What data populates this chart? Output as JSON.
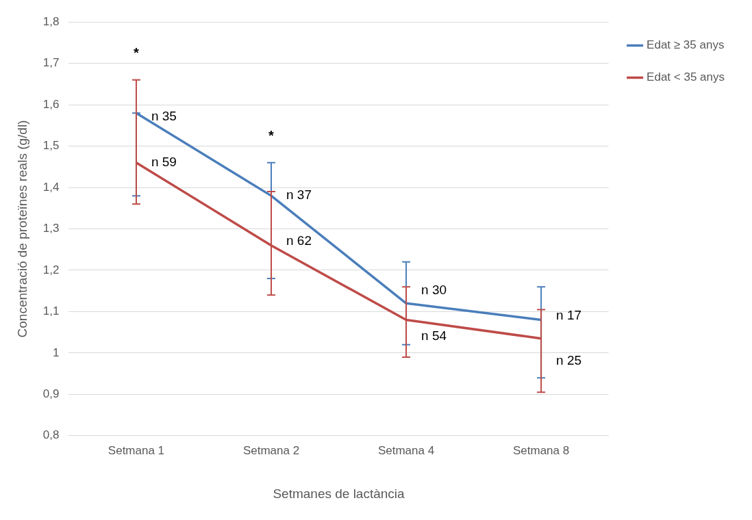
{
  "chart_data": {
    "type": "line",
    "xlabel": "Setmanes de lactància",
    "ylabel": "Concentració de proteïnes reals (g/dl)",
    "categories": [
      "Setmana 1",
      "Setmana 2",
      "Setmana 4",
      "Setmana 8"
    ],
    "series": [
      {
        "name": "Edat ≥ 35 anys",
        "color": "#4a7ebb",
        "values": [
          1.58,
          1.38,
          1.12,
          1.08
        ],
        "errors": [
          [
            1.38,
            1.58
          ],
          [
            1.18,
            1.46
          ],
          [
            1.02,
            1.22
          ],
          [
            0.94,
            1.16
          ]
        ]
      },
      {
        "name": "Edat < 35 anys",
        "color": "#be4b48",
        "values": [
          1.46,
          1.26,
          1.08,
          1.035
        ],
        "errors": [
          [
            1.36,
            1.66
          ],
          [
            1.14,
            1.39
          ],
          [
            0.99,
            1.16
          ],
          [
            0.905,
            1.105
          ]
        ]
      }
    ],
    "ylim": [
      0.8,
      1.8
    ],
    "yticks": [
      {
        "value": 0.8,
        "label": "0,8"
      },
      {
        "value": 0.9,
        "label": "0,9"
      },
      1,
      {
        "value": 1.1,
        "label": "1,1"
      },
      {
        "value": 1.2,
        "label": "1,2"
      },
      {
        "value": 1.3,
        "label": "1,3"
      },
      {
        "value": 1.4,
        "label": "1,4"
      },
      {
        "value": 1.5,
        "label": "1,5"
      },
      {
        "value": 1.6,
        "label": "1,6"
      },
      {
        "value": 1.7,
        "label": "1,7"
      },
      {
        "value": 1.8,
        "label": "1,8"
      }
    ],
    "annotations": [
      "*",
      "*",
      {
        "text": "n 35",
        "x": "Setmana 1",
        "y": 1.57
      },
      {
        "text": "n 59",
        "x": "Setmana 1",
        "y": 1.46
      },
      {
        "text": "n 37",
        "x": "Setmana 2",
        "y": 1.38
      },
      {
        "text": "n 62",
        "x": "Setmana 2",
        "y": 1.27
      },
      {
        "text": "n 30",
        "x": "Setmana 4",
        "y": 1.15
      },
      {
        "text": "n 54",
        "x": "Setmana 4",
        "y": 1.04
      },
      {
        "text": "n 17",
        "x": "Setmana 8",
        "y": 1.09
      },
      {
        "text": "n 25",
        "x": "Setmana 8",
        "y": 0.98
      }
    ],
    "grid": "y",
    "legend": "right",
    "marker": "none",
    "line_style": "solid"
  }
}
